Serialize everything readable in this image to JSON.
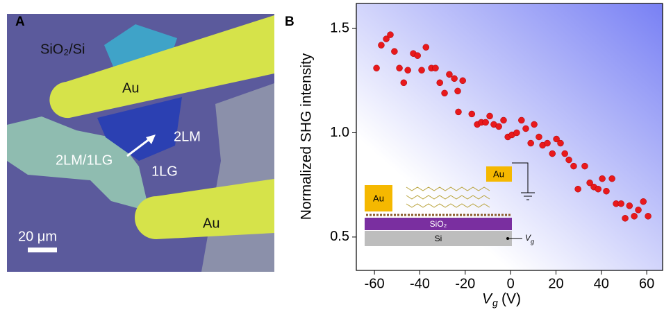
{
  "panel_a": {
    "label": "A",
    "substrate": "SiO₂/Si",
    "electrode_top": "Au",
    "bilayer": "2LM",
    "heterostructure": "2LM/1LG",
    "graphene": "1LG",
    "electrode_bottom": "Au",
    "scale_bar": "20 μm"
  },
  "chart_data": {
    "type": "scatter",
    "panel_label": "B",
    "ylabel": "Normalized SHG intensity",
    "xlabel_symbol": "V",
    "xlabel_subscript": "g",
    "xlabel_unit": "(V)",
    "color": "#e8191c",
    "x": [
      -59.1,
      -57,
      -54.8,
      -53,
      -51.2,
      -49,
      -47.1,
      -45.3,
      -42.9,
      -41,
      -39.2,
      -37.3,
      -34.9,
      -33.1,
      -31.2,
      -29.1,
      -27,
      -24.8,
      -23.3,
      -21.1,
      -23,
      -17.1,
      -14.7,
      -12.9,
      -11,
      -9.2,
      -7.4,
      -5.2,
      -3.1,
      -1.2,
      0.6,
      2.7,
      4.8,
      6.7,
      8.9,
      10.4,
      12.5,
      14.1,
      16.2,
      18.4,
      20.2,
      22,
      23.9,
      25.7,
      27.8,
      29.7,
      32.7,
      34.9,
      36.7,
      38.6,
      40.4,
      42.2,
      44.7,
      46.5,
      48.7,
      50.5,
      52.4,
      54.5,
      56.3,
      58.5,
      60.6
    ],
    "values": [
      1.31,
      1.42,
      1.45,
      1.47,
      1.39,
      1.31,
      1.24,
      1.3,
      1.38,
      1.37,
      1.3,
      1.41,
      1.31,
      1.31,
      1.24,
      1.19,
      1.28,
      1.26,
      1.2,
      1.25,
      1.1,
      1.09,
      1.04,
      1.05,
      1.05,
      1.08,
      1.04,
      1.03,
      1.06,
      0.98,
      0.99,
      1.0,
      1.06,
      1.02,
      0.95,
      1.04,
      0.98,
      0.94,
      0.95,
      0.9,
      0.97,
      0.95,
      0.9,
      0.87,
      0.84,
      0.73,
      0.84,
      0.76,
      0.74,
      0.73,
      0.78,
      0.72,
      0.78,
      0.66,
      0.66,
      0.59,
      0.65,
      0.6,
      0.63,
      0.67,
      0.6
    ],
    "xlim": [
      -68,
      67
    ],
    "ylim": [
      0.34,
      1.62
    ],
    "xticks": [
      -60,
      -40,
      -20,
      0,
      20,
      40,
      60
    ],
    "yticks": [
      {
        "value": 0.5,
        "label": "0.5"
      },
      {
        "value": 1.0,
        "label": "1.0"
      },
      {
        "value": 1.5,
        "label": "1.5"
      }
    ],
    "grid": false,
    "inset": {
      "contact_left": "Au",
      "contact_right": "Au",
      "oxide": "SiO₂",
      "substrate": "Si",
      "gate_symbol": "V",
      "gate_subscript": "g"
    }
  }
}
